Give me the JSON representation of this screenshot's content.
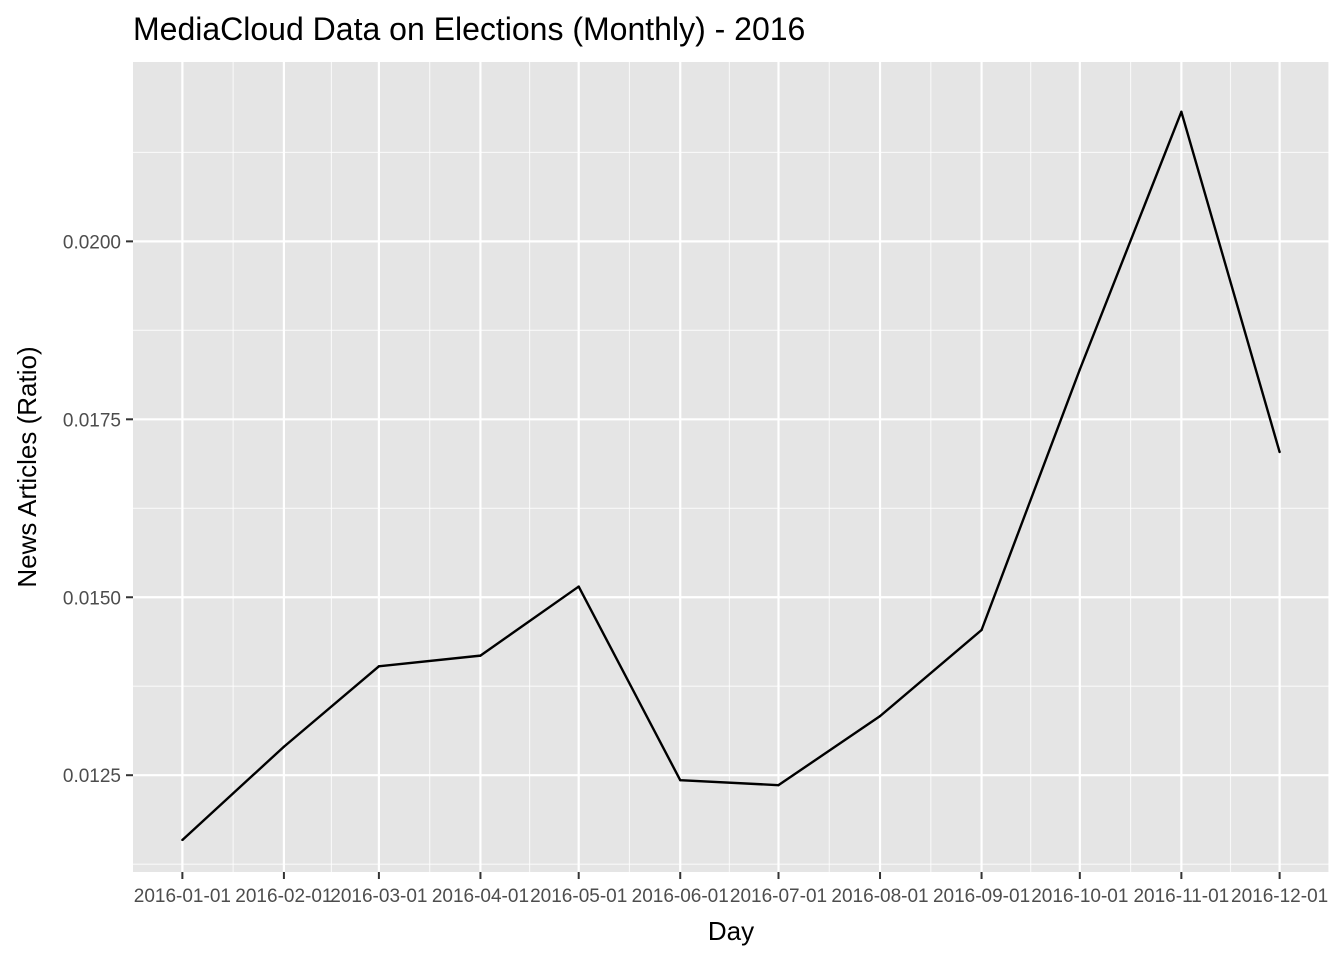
{
  "chart_data": {
    "type": "line",
    "title": "MediaCloud Data on Elections (Monthly) - 2016",
    "xlabel": "Day",
    "ylabel": "News Articles (Ratio)",
    "x": [
      "2016-01-01",
      "2016-02-01",
      "2016-03-01",
      "2016-04-01",
      "2016-05-01",
      "2016-06-01",
      "2016-07-01",
      "2016-08-01",
      "2016-09-01",
      "2016-10-01",
      "2016-11-01",
      "2016-12-01"
    ],
    "series": [
      {
        "values": [
          0.01159,
          0.0129,
          0.01403,
          0.01418,
          0.01515,
          0.01243,
          0.01236,
          0.01333,
          0.01454,
          0.0182,
          0.02182,
          0.01704
        ]
      }
    ],
    "ylim": [
      0.01114,
      0.02252
    ],
    "yticks": [
      0.0125,
      0.015,
      0.0175,
      0.02
    ],
    "ytick_labels": [
      "0.0125",
      "0.0150",
      "0.0175",
      "0.0200"
    ],
    "xtick_labels": [
      "2016-01-01",
      "2016-02-01",
      "2016-03-01",
      "2016-04-01",
      "2016-05-01",
      "2016-06-01",
      "2016-07-01",
      "2016-08-01",
      "2016-09-01",
      "2016-10-01",
      "2016-11-01",
      "2016-12-01"
    ],
    "grid": true,
    "legend": "none",
    "colors": {
      "panel": "#e5e5e5",
      "line": "#000000",
      "grid": "#ffffff"
    }
  }
}
